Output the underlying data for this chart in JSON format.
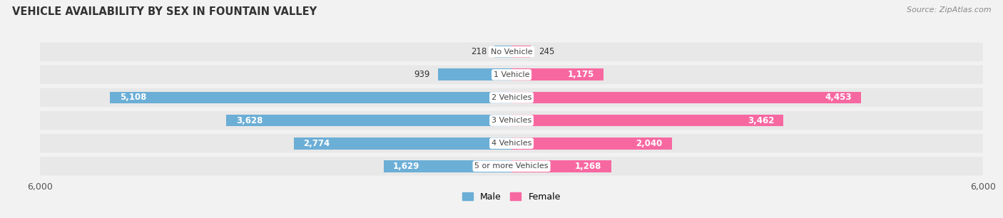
{
  "title": "VEHICLE AVAILABILITY BY SEX IN FOUNTAIN VALLEY",
  "source": "Source: ZipAtlas.com",
  "categories": [
    "No Vehicle",
    "1 Vehicle",
    "2 Vehicles",
    "3 Vehicles",
    "4 Vehicles",
    "5 or more Vehicles"
  ],
  "male_values": [
    218,
    939,
    5108,
    3628,
    2774,
    1629
  ],
  "female_values": [
    245,
    1175,
    4453,
    3462,
    2040,
    1268
  ],
  "male_color": "#6baed6",
  "female_color": "#f768a1",
  "axis_max": 6000,
  "bg_color": "#f2f2f2",
  "row_bg_even": "#ebebeb",
  "row_bg_odd": "#e0e0e0",
  "title_fontsize": 10.5,
  "source_fontsize": 8,
  "bar_label_fontsize": 8.5,
  "category_fontsize": 8
}
